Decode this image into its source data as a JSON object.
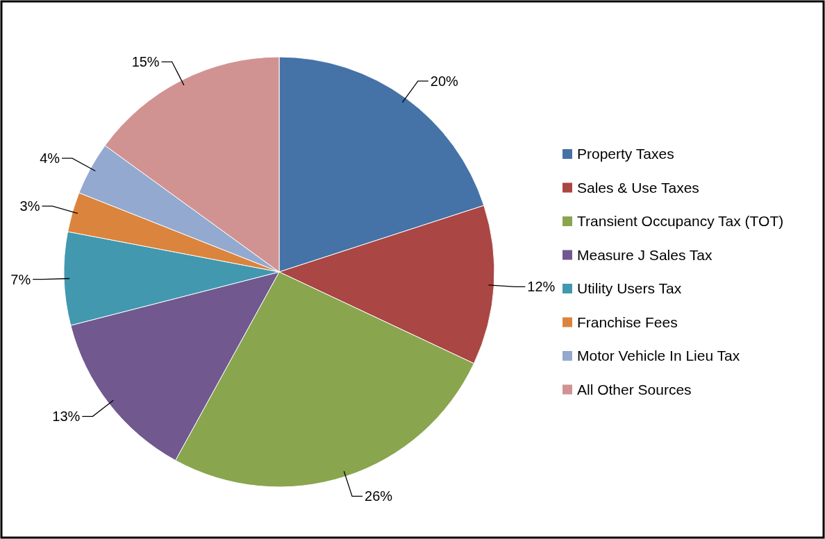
{
  "chart_data": {
    "type": "pie",
    "categories": [
      "Property Taxes",
      "Sales & Use Taxes",
      "Transient Occupancy Tax (TOT)",
      "Measure J Sales Tax",
      "Utility Users Tax",
      "Franchise Fees",
      "Motor Vehicle In Lieu Tax",
      "All Other Sources"
    ],
    "values": [
      20,
      12,
      26,
      13,
      7,
      3,
      4,
      15
    ],
    "colors": [
      "#4572a7",
      "#aa4643",
      "#89a54e",
      "#71588f",
      "#4198af",
      "#db843d",
      "#93a9cf",
      "#d19392"
    ],
    "value_labels": [
      "20%",
      "12%",
      "26%",
      "13%",
      "7%",
      "3%",
      "4%",
      "15%"
    ],
    "legend": "right"
  }
}
